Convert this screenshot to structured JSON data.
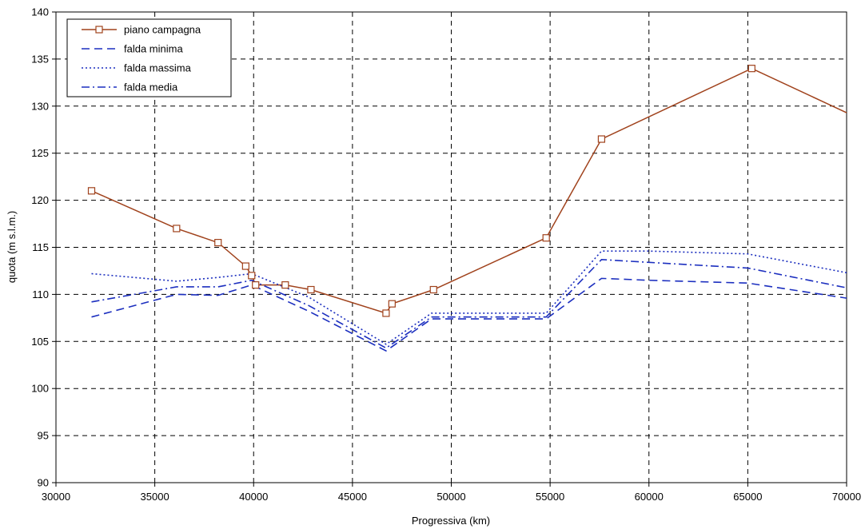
{
  "chart_data": {
    "type": "line",
    "title": "",
    "xlabel": "Progressiva (km)",
    "ylabel": "quota (m s.l.m.)",
    "xlim": [
      30000,
      70000
    ],
    "ylim": [
      90,
      140
    ],
    "xticks": [
      30000,
      35000,
      40000,
      45000,
      50000,
      55000,
      60000,
      65000,
      70000
    ],
    "yticks": [
      90,
      95,
      100,
      105,
      110,
      115,
      120,
      125,
      130,
      135,
      140
    ],
    "grid": true,
    "legend_position": "top-left",
    "series": [
      {
        "name": "piano campagna",
        "color": "#a0421c",
        "style": "solid",
        "marker": "square",
        "x": [
          31800,
          36100,
          38200,
          39600,
          39900,
          40100,
          41600,
          42900,
          46700,
          47000,
          49100,
          54800,
          57600,
          65200,
          70000
        ],
        "y": [
          121,
          117,
          115.5,
          113,
          112,
          111,
          111,
          110.5,
          108,
          109,
          110.5,
          116,
          126.5,
          134,
          129.3
        ],
        "marker_count": 14
      },
      {
        "name": "falda minima",
        "color": "#1c2fbf",
        "style": "dashed",
        "x": [
          31800,
          36100,
          38200,
          39900,
          42800,
          46700,
          49000,
          54800,
          57600,
          60000,
          65000,
          70000
        ],
        "y": [
          107.6,
          110,
          109.9,
          111,
          108.2,
          104,
          107.4,
          107.4,
          111.7,
          111.5,
          111.2,
          109.6
        ]
      },
      {
        "name": "falda massima",
        "color": "#1c2fbf",
        "style": "dotted",
        "x": [
          31800,
          36100,
          38200,
          39900,
          42800,
          46700,
          49000,
          54800,
          57600,
          60000,
          65000,
          70000
        ],
        "y": [
          112.2,
          111.4,
          111.8,
          112.2,
          109.7,
          104.7,
          108,
          108,
          114.6,
          114.6,
          114.3,
          112.3
        ]
      },
      {
        "name": "falda media",
        "color": "#1c2fbf",
        "style": "dashdot",
        "x": [
          31800,
          36100,
          38200,
          39900,
          42800,
          46700,
          49000,
          54800,
          57600,
          60000,
          65000,
          70000
        ],
        "y": [
          109.2,
          110.8,
          110.8,
          111.5,
          108.8,
          104.3,
          107.6,
          107.6,
          113.7,
          113.4,
          112.8,
          110.7
        ]
      }
    ]
  }
}
